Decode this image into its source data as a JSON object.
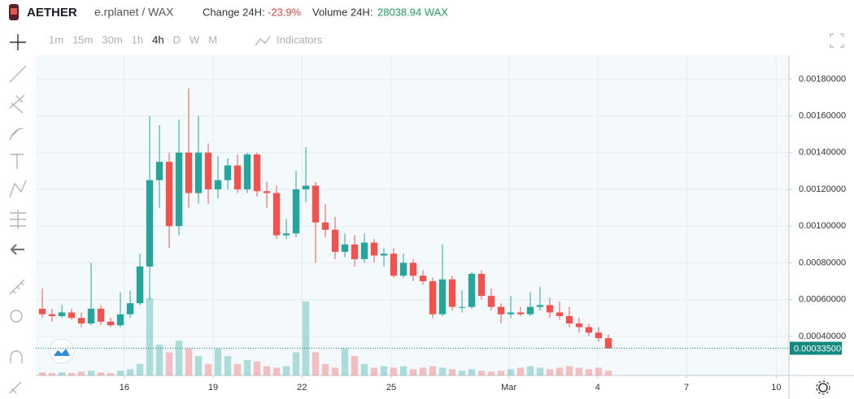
{
  "header": {
    "symbol": "AETHER",
    "pair": "e.rplanet / WAX",
    "change_label": "Change 24H:",
    "change": "-23.9%",
    "volume_label": "Volume 24H:",
    "volume": "28038.94 WAX"
  },
  "toolbar": {
    "intervals": [
      "1m",
      "15m",
      "30m",
      "1h",
      "4h",
      "D",
      "W",
      "M"
    ],
    "selected": "4h",
    "indicators": "Indicators"
  },
  "chart_data": {
    "type": "candlestick",
    "open": [
      0.00055,
      0.00052,
      0.00051,
      0.00053,
      0.0005,
      0.00047,
      0.00055,
      0.00048,
      0.00046,
      0.00052,
      0.00058,
      0.00078,
      0.00125,
      0.00135,
      0.001,
      0.0014,
      0.00118,
      0.0014,
      0.0012,
      0.00125,
      0.00133,
      0.0012,
      0.00139,
      0.00119,
      0.00118,
      0.00095,
      0.00096,
      0.0012,
      0.00122,
      0.00102,
      0.00098,
      0.00086,
      0.0009,
      0.00082,
      0.00091,
      0.00084,
      0.00085,
      0.00073,
      0.0008,
      0.00073,
      0.0007,
      0.00052,
      0.00071,
      0.00056,
      0.00056,
      0.00074,
      0.00062,
      0.00056,
      0.00052,
      0.00053,
      0.00052,
      0.00056,
      0.00057,
      0.00053,
      0.00051,
      0.00047,
      0.00045,
      0.00042,
      0.00039
    ],
    "high": [
      0.00066,
      0.00055,
      0.00057,
      0.00055,
      0.00053,
      0.0008,
      0.00057,
      0.0005,
      0.00064,
      0.00065,
      0.00085,
      0.0016,
      0.00155,
      0.0014,
      0.00158,
      0.00175,
      0.0016,
      0.00145,
      0.00138,
      0.00137,
      0.00139,
      0.0014,
      0.0014,
      0.00124,
      0.00122,
      0.00104,
      0.0013,
      0.00143,
      0.00124,
      0.00112,
      0.00105,
      0.00096,
      0.00095,
      0.00096,
      0.00093,
      0.00088,
      0.00088,
      0.00085,
      0.00082,
      0.00076,
      0.00072,
      0.0009,
      0.00073,
      0.00065,
      0.00075,
      0.00076,
      0.00066,
      0.00058,
      0.00062,
      0.00056,
      0.00064,
      0.00067,
      0.00061,
      0.00059,
      0.00056,
      0.0005,
      0.00047,
      0.00045,
      0.00041
    ],
    "low": [
      0.0005,
      0.00048,
      0.0005,
      0.00049,
      0.00045,
      0.00046,
      0.00046,
      0.00045,
      0.00045,
      0.0005,
      0.00057,
      0.0006,
      0.0011,
      0.00088,
      0.00095,
      0.0011,
      0.00112,
      0.00112,
      0.00115,
      0.0012,
      0.00118,
      0.00118,
      0.00116,
      0.0011,
      0.00093,
      0.00093,
      0.00094,
      0.00113,
      0.0008,
      0.00094,
      0.00082,
      0.00083,
      0.00078,
      0.0008,
      0.0008,
      0.00078,
      0.00072,
      0.00072,
      0.0007,
      0.00068,
      0.0005,
      0.00051,
      0.00054,
      0.00053,
      0.00055,
      0.0006,
      0.00054,
      0.00047,
      0.0005,
      0.00051,
      0.00051,
      0.00054,
      0.0005,
      0.00049,
      0.00045,
      0.00042,
      0.0004,
      0.00037,
      0.00033
    ],
    "close": [
      0.00052,
      0.00051,
      0.00053,
      0.0005,
      0.00047,
      0.00055,
      0.00048,
      0.00046,
      0.00052,
      0.00058,
      0.00078,
      0.00125,
      0.00135,
      0.001,
      0.0014,
      0.00118,
      0.0014,
      0.0012,
      0.00125,
      0.00133,
      0.0012,
      0.00139,
      0.00119,
      0.00118,
      0.00095,
      0.00096,
      0.0012,
      0.00122,
      0.00102,
      0.00098,
      0.00086,
      0.0009,
      0.00082,
      0.00091,
      0.00084,
      0.00085,
      0.00073,
      0.0008,
      0.00073,
      0.0007,
      0.00052,
      0.00071,
      0.00056,
      0.00056,
      0.00074,
      0.00062,
      0.00056,
      0.00052,
      0.00053,
      0.00052,
      0.00056,
      0.00057,
      0.00053,
      0.00051,
      0.00047,
      0.00045,
      0.00042,
      0.00039,
      0.000335
    ],
    "volume": [
      4,
      3,
      4,
      3,
      5,
      6,
      4,
      3,
      6,
      8,
      15,
      100,
      40,
      30,
      45,
      35,
      25,
      15,
      35,
      25,
      15,
      20,
      18,
      12,
      10,
      12,
      30,
      96,
      30,
      15,
      10,
      35,
      25,
      15,
      10,
      12,
      10,
      12,
      8,
      10,
      12,
      10,
      8,
      6,
      8,
      6,
      5,
      6,
      8,
      10,
      12,
      10,
      8,
      10,
      12,
      10,
      8,
      10,
      6
    ],
    "vlim": [
      0,
      100
    ],
    "xlim": [
      -0.67,
      76.5
    ],
    "xticks": [
      {
        "value": 8.4,
        "label": "16"
      },
      {
        "value": 17.5,
        "label": "19"
      },
      {
        "value": 26.6,
        "label": "22"
      },
      {
        "value": 35.75,
        "label": "25"
      },
      {
        "value": 47.8,
        "label": "Mar"
      },
      {
        "value": 56.9,
        "label": "4"
      },
      {
        "value": 66,
        "label": "7"
      },
      {
        "value": 75.2,
        "label": "10"
      }
    ],
    "ylim": [
      0.000187,
      0.00193
    ],
    "yticks": [
      {
        "value": 0.0004,
        "label": "0.00040000"
      },
      {
        "value": 0.0006,
        "label": "0.00060000"
      },
      {
        "value": 0.0008,
        "label": "0.00080000"
      },
      {
        "value": 0.001,
        "label": "0.00100000"
      },
      {
        "value": 0.0012,
        "label": "0.00120000"
      },
      {
        "value": 0.0014,
        "label": "0.00140000"
      },
      {
        "value": 0.0016,
        "label": "0.00160000"
      },
      {
        "value": 0.0018,
        "label": "0.00180000"
      }
    ],
    "last_price": {
      "value": 0.000335,
      "label": "0.00033500"
    },
    "up_color": "#26a69a",
    "down_color": "#ef5350",
    "grid": true
  }
}
